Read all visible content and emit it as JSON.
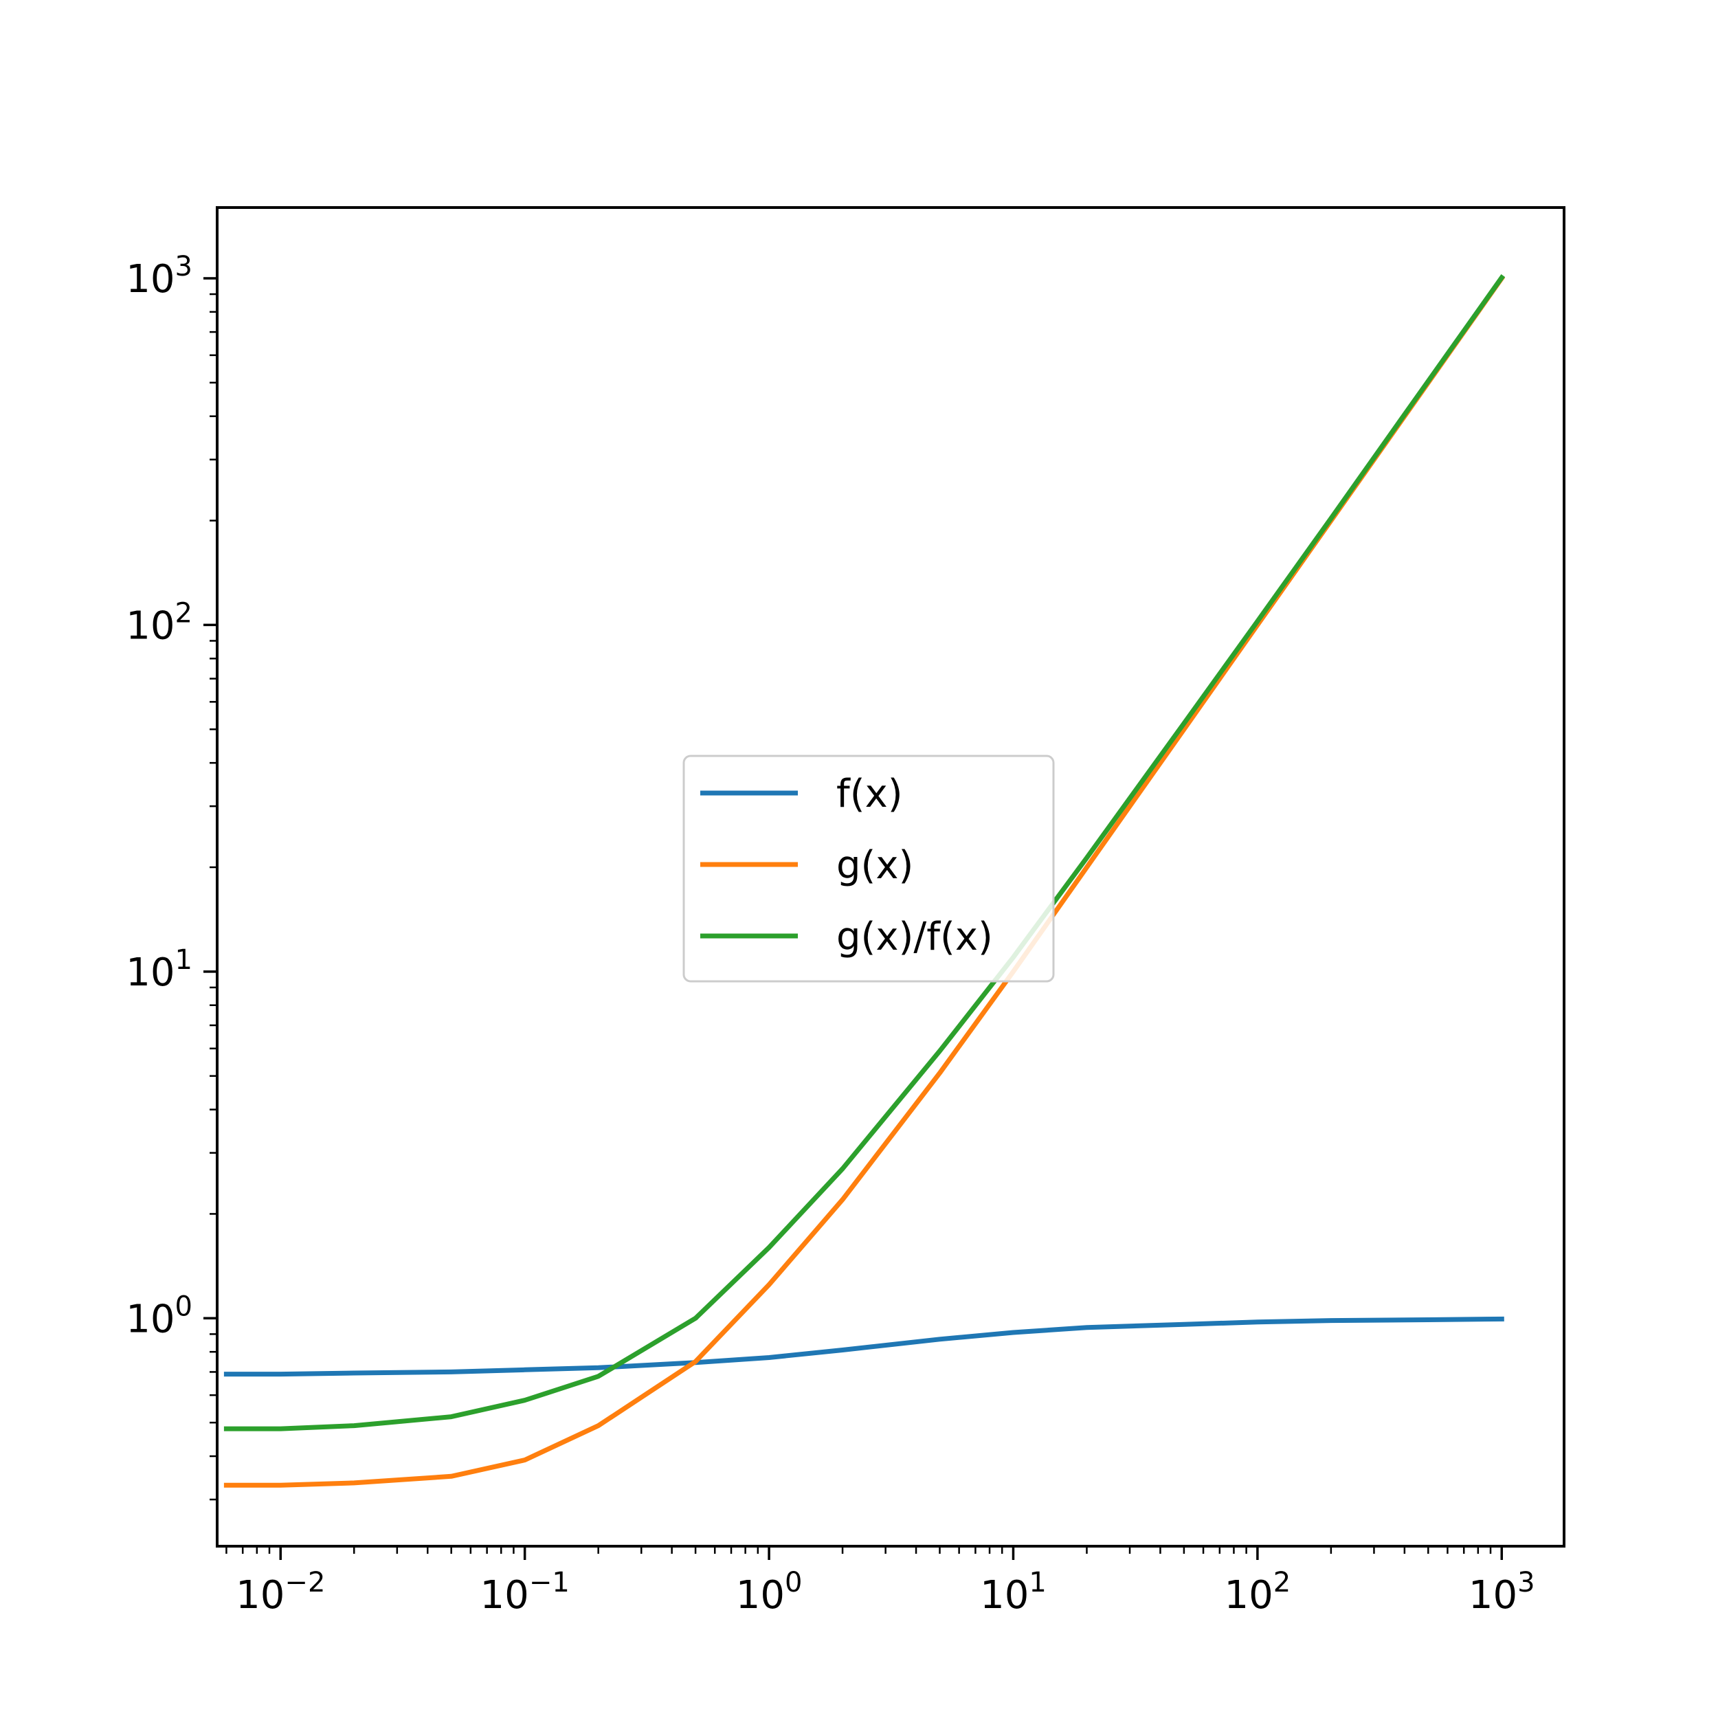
{
  "chart_data": {
    "type": "line",
    "title": "",
    "xlabel": "",
    "ylabel": "",
    "xscale": "log",
    "yscale": "log",
    "xlim": [
      0.0055,
      1800
    ],
    "ylim": [
      0.22,
      1600
    ],
    "grid": false,
    "legend_placement": "center",
    "x_ticks": [
      {
        "base": "10",
        "exp": "−2",
        "value": 0.01
      },
      {
        "base": "10",
        "exp": "−1",
        "value": 0.1
      },
      {
        "base": "10",
        "exp": "0",
        "value": 1
      },
      {
        "base": "10",
        "exp": "1",
        "value": 10
      },
      {
        "base": "10",
        "exp": "2",
        "value": 100
      },
      {
        "base": "10",
        "exp": "3",
        "value": 1000
      }
    ],
    "y_ticks": [
      {
        "base": "10",
        "exp": "0",
        "value": 1
      },
      {
        "base": "10",
        "exp": "1",
        "value": 10
      },
      {
        "base": "10",
        "exp": "2",
        "value": 100
      },
      {
        "base": "10",
        "exp": "3",
        "value": 1000
      }
    ],
    "x": [
      0.006,
      0.01,
      0.02,
      0.05,
      0.1,
      0.2,
      0.5,
      1,
      2,
      5,
      10,
      20,
      50,
      100,
      200,
      500,
      1000
    ],
    "series": [
      {
        "name": "f(x)",
        "color": "#1f77b4",
        "values": [
          0.69,
          0.69,
          0.695,
          0.7,
          0.71,
          0.72,
          0.745,
          0.77,
          0.81,
          0.87,
          0.91,
          0.94,
          0.96,
          0.975,
          0.985,
          0.99,
          0.995
        ]
      },
      {
        "name": "g(x)",
        "color": "#ff7f0e",
        "values": [
          0.33,
          0.33,
          0.335,
          0.35,
          0.39,
          0.49,
          0.75,
          1.25,
          2.2,
          5.1,
          10,
          20,
          50,
          100,
          200,
          500,
          1000
        ]
      },
      {
        "name": "g(x)/f(x)",
        "color": "#2ca02c",
        "values": [
          0.48,
          0.48,
          0.49,
          0.52,
          0.58,
          0.68,
          1.0,
          1.6,
          2.7,
          5.9,
          11.0,
          21.3,
          52,
          102.5,
          203,
          505,
          1005
        ]
      }
    ]
  }
}
